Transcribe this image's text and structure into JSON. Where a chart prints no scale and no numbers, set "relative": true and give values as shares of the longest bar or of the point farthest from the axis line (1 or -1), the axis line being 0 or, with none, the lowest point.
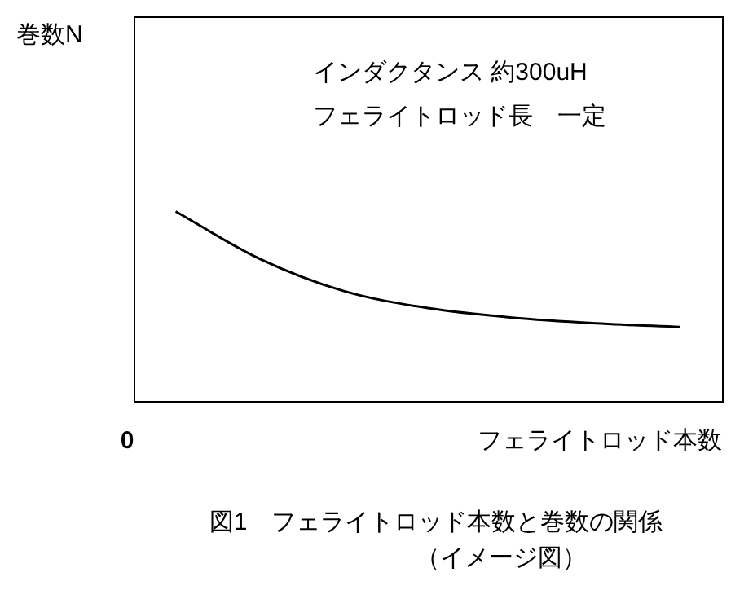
{
  "chart_data": {
    "type": "line",
    "relative": true,
    "xlabel": "フェライトロッド本数",
    "categories": [
      null,
      null,
      null,
      null,
      null,
      null,
      null
    ],
    "series": [
      {
        "color": "#000000",
        "values": [
          1,
          0.75,
          0.58,
          0.49,
          0.44,
          0.41,
          0.39
        ]
      }
    ],
    "marker": "none",
    "line_style": "solid",
    "legend": false,
    "annotations": [
      "巻数N",
      "0",
      "インダクタンス 約300uH",
      "フェライトロッド長　一定",
      "図1　フェライトロッド本数と巻数の関係",
      "（イメージ図）"
    ]
  }
}
